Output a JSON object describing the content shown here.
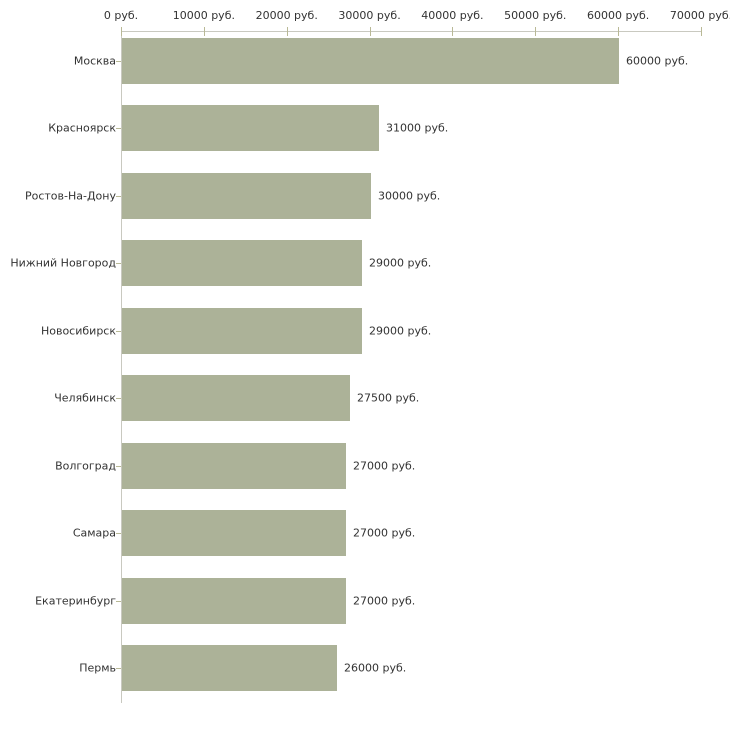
{
  "chart_data": {
    "type": "bar",
    "orientation": "horizontal",
    "title": "",
    "categories": [
      "Москва",
      "Красноярск",
      "Ростов-На-Дону",
      "Нижний Новгород",
      "Новосибирск",
      "Челябинск",
      "Волгоград",
      "Самара",
      "Екатеринбург",
      "Пермь"
    ],
    "values": [
      60000,
      31000,
      30000,
      29000,
      29000,
      27500,
      27000,
      27000,
      27000,
      26000
    ],
    "value_labels": [
      "60000 руб.",
      "31000 руб.",
      "30000 руб.",
      "29000 руб.",
      "29000 руб.",
      "27500 руб.",
      "27000 руб.",
      "27000 руб.",
      "27000 руб.",
      "26000 руб."
    ],
    "x_axis": {
      "position": "top",
      "min": 0,
      "max": 70000,
      "ticks": [
        0,
        10000,
        20000,
        30000,
        40000,
        50000,
        60000,
        70000
      ],
      "tick_labels": [
        "0 руб.",
        "10000 руб.",
        "20000 руб.",
        "30000 руб.",
        "40000 руб.",
        "50000 руб.",
        "60000 руб.",
        "70000 руб."
      ]
    },
    "grid": false,
    "legend": false,
    "colors": {
      "bar": "#acb298",
      "axis_line": "#c9c9c0",
      "tick": "#b9b996",
      "text": "#333333"
    }
  }
}
